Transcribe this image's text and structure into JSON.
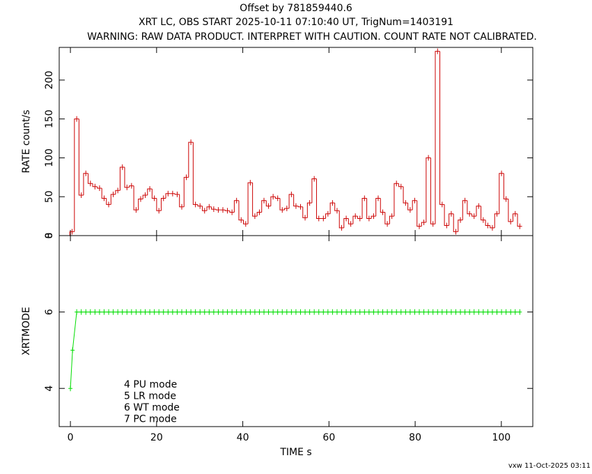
{
  "title": "Offset by 781859440.6",
  "subtitle": "XRT LC, OBS START 2025-10-11 07:10:40 UT, TrigNum=1403191",
  "warning": "WARNING: RAW DATA PRODUCT. INTERPRET WITH CAUTION. COUNT RATE NOT CALIBRATED.",
  "footer": "vxw 11-Oct-2025 03:11",
  "chart_data": [
    {
      "type": "step",
      "ylabel": "RATE  count/s",
      "color": "#cc0000",
      "xlim": [
        -2.6,
        107.3
      ],
      "xticks": [
        0,
        20,
        40,
        60,
        80,
        100
      ],
      "ylim": [
        0,
        242
      ],
      "yticks": [
        0,
        50,
        100,
        150,
        200
      ],
      "x": [
        0.4,
        1.46,
        2.52,
        3.58,
        4.64,
        5.7,
        6.76,
        7.82,
        8.88,
        9.94,
        11,
        12.06,
        13.12,
        14.18,
        15.24,
        16.3,
        17.36,
        18.42,
        19.48,
        20.54,
        21.6,
        22.66,
        23.72,
        24.78,
        25.84,
        26.9,
        27.96,
        29.02,
        30.08,
        31.14,
        32.2,
        33.26,
        34.32,
        35.38,
        36.44,
        37.5,
        38.56,
        39.62,
        40.68,
        41.74,
        42.8,
        43.86,
        44.92,
        45.98,
        47.04,
        48.1,
        49.16,
        50.22,
        51.28,
        52.34,
        53.4,
        54.46,
        55.52,
        56.58,
        57.64,
        58.7,
        59.76,
        60.82,
        61.88,
        62.94,
        64,
        65.06,
        66.12,
        67.18,
        68.24,
        69.3,
        70.36,
        71.42,
        72.48,
        73.54,
        74.6,
        75.66,
        76.72,
        77.78,
        78.84,
        79.9,
        80.96,
        82.02,
        83.08,
        84.14,
        85.2,
        86.26,
        87.32,
        88.38,
        89.44,
        90.5,
        91.56,
        92.62,
        93.68,
        94.74,
        95.8,
        96.86,
        97.92,
        98.98,
        100.04,
        101.1,
        102.16,
        103.22,
        104.28
      ],
      "values": [
        5,
        150,
        52,
        80,
        67,
        63,
        61,
        48,
        40,
        53,
        58,
        88,
        62,
        64,
        33,
        47,
        52,
        60,
        48,
        32,
        48,
        54,
        54,
        53,
        37,
        75,
        120,
        40,
        38,
        32,
        37,
        34,
        33,
        33,
        32,
        30,
        45,
        20,
        15,
        68,
        25,
        30,
        45,
        38,
        50,
        48,
        33,
        35,
        53,
        38,
        37,
        23,
        42,
        73,
        22,
        22,
        28,
        42,
        32,
        10,
        22,
        15,
        25,
        22,
        48,
        22,
        25,
        48,
        30,
        15,
        25,
        67,
        63,
        42,
        33,
        45,
        12,
        17,
        100,
        15,
        237,
        40,
        13,
        28,
        5,
        20,
        45,
        28,
        25,
        38,
        20,
        13,
        10,
        28,
        80,
        47,
        18,
        28,
        12
      ]
    },
    {
      "type": "line",
      "ylabel": "XRTMODE",
      "xlabel": "TIME  s",
      "color": "#00dd00",
      "xlim": [
        -2.6,
        107.3
      ],
      "xticks": [
        0,
        20,
        40,
        60,
        80,
        100
      ],
      "ylim": [
        3,
        8
      ],
      "yticks": [
        4,
        6,
        8
      ],
      "annotations": [
        "4 PU mode",
        "5 LR mode",
        "6 WT mode",
        "7 PC mode"
      ],
      "x": [
        0,
        0.5,
        1.46,
        2.52,
        3.58,
        4.64,
        5.7,
        6.76,
        7.82,
        8.88,
        9.94,
        11,
        12.06,
        13.12,
        14.18,
        15.24,
        16.3,
        17.36,
        18.42,
        19.48,
        20.54,
        21.6,
        22.66,
        23.72,
        24.78,
        25.84,
        26.9,
        27.96,
        29.02,
        30.08,
        31.14,
        32.2,
        33.26,
        34.32,
        35.38,
        36.44,
        37.5,
        38.56,
        39.62,
        40.68,
        41.74,
        42.8,
        43.86,
        44.92,
        45.98,
        47.04,
        48.1,
        49.16,
        50.22,
        51.28,
        52.34,
        53.4,
        54.46,
        55.52,
        56.58,
        57.64,
        58.7,
        59.76,
        60.82,
        61.88,
        62.94,
        64,
        65.06,
        66.12,
        67.18,
        68.24,
        69.3,
        70.36,
        71.42,
        72.48,
        73.54,
        74.6,
        75.66,
        76.72,
        77.78,
        78.84,
        79.9,
        80.96,
        82.02,
        83.08,
        84.14,
        85.2,
        86.26,
        87.32,
        88.38,
        89.44,
        90.5,
        91.56,
        92.62,
        93.68,
        94.74,
        95.8,
        96.86,
        97.92,
        98.98,
        100.04,
        101.1,
        102.16,
        103.22,
        104.28
      ],
      "values": [
        4,
        5,
        6,
        6,
        6,
        6,
        6,
        6,
        6,
        6,
        6,
        6,
        6,
        6,
        6,
        6,
        6,
        6,
        6,
        6,
        6,
        6,
        6,
        6,
        6,
        6,
        6,
        6,
        6,
        6,
        6,
        6,
        6,
        6,
        6,
        6,
        6,
        6,
        6,
        6,
        6,
        6,
        6,
        6,
        6,
        6,
        6,
        6,
        6,
        6,
        6,
        6,
        6,
        6,
        6,
        6,
        6,
        6,
        6,
        6,
        6,
        6,
        6,
        6,
        6,
        6,
        6,
        6,
        6,
        6,
        6,
        6,
        6,
        6,
        6,
        6,
        6,
        6,
        6,
        6,
        6,
        6,
        6,
        6,
        6,
        6,
        6,
        6,
        6,
        6,
        6,
        6,
        6,
        6,
        6,
        6,
        6,
        6,
        6,
        6
      ]
    }
  ]
}
